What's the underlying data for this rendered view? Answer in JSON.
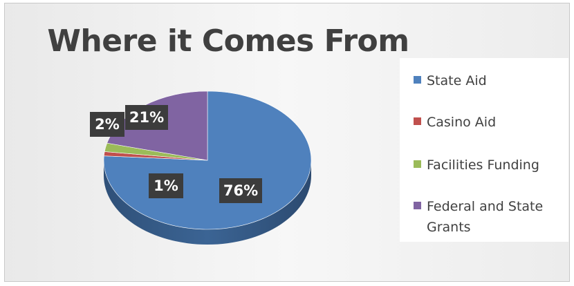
{
  "chart_data": {
    "type": "pie",
    "title": "Where it Comes From",
    "categories": [
      "State Aid",
      "Casino Aid",
      "Facilities Funding",
      "Federal and State Grants"
    ],
    "values": [
      76,
      1,
      2,
      21
    ],
    "labels": [
      "76%",
      "1%",
      "2%",
      "21%"
    ],
    "colors": [
      "#4f81bd",
      "#c0504d",
      "#9bbb59",
      "#8064a2"
    ],
    "legend_position": "right",
    "style": "3d"
  }
}
